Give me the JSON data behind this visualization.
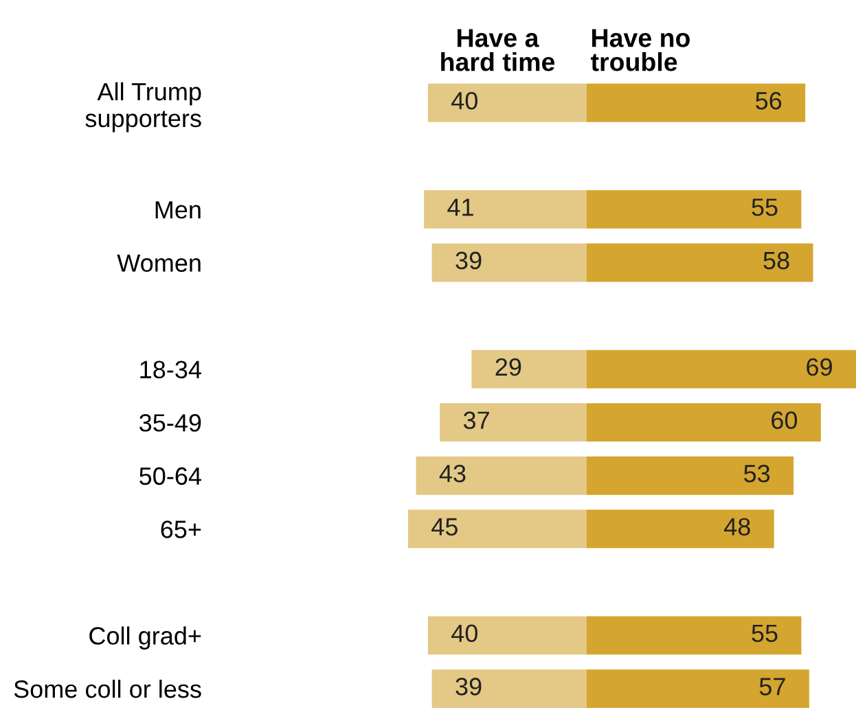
{
  "chart_data": [
    {
      "type": "bar",
      "orientation": "horizontal",
      "data_labels": true,
      "xlim": [
        45,
        0
      ],
      "categories": [
        "All Trump\nsupporters",
        null,
        "Men",
        "Women",
        null,
        "18-34",
        "35-49",
        "50-64",
        "65+",
        null,
        "Coll grad+",
        "Some coll or less"
      ],
      "series": [
        {
          "name": "Have a\nhard time",
          "color": "#e3c985",
          "values": [
            40,
            null,
            41,
            39,
            null,
            29,
            37,
            43,
            45,
            null,
            40,
            39
          ]
        }
      ]
    },
    {
      "type": "bar",
      "orientation": "horizontal",
      "data_labels": true,
      "xlim": [
        0,
        69
      ],
      "categories": [
        null,
        null,
        null,
        null,
        null,
        null,
        null,
        null,
        null,
        null,
        null,
        null
      ],
      "series": [
        {
          "name": "Have no\ntrouble",
          "color": "#d4a52f",
          "values": [
            56,
            null,
            55,
            58,
            null,
            69,
            60,
            53,
            48,
            null,
            55,
            57
          ]
        }
      ]
    }
  ]
}
